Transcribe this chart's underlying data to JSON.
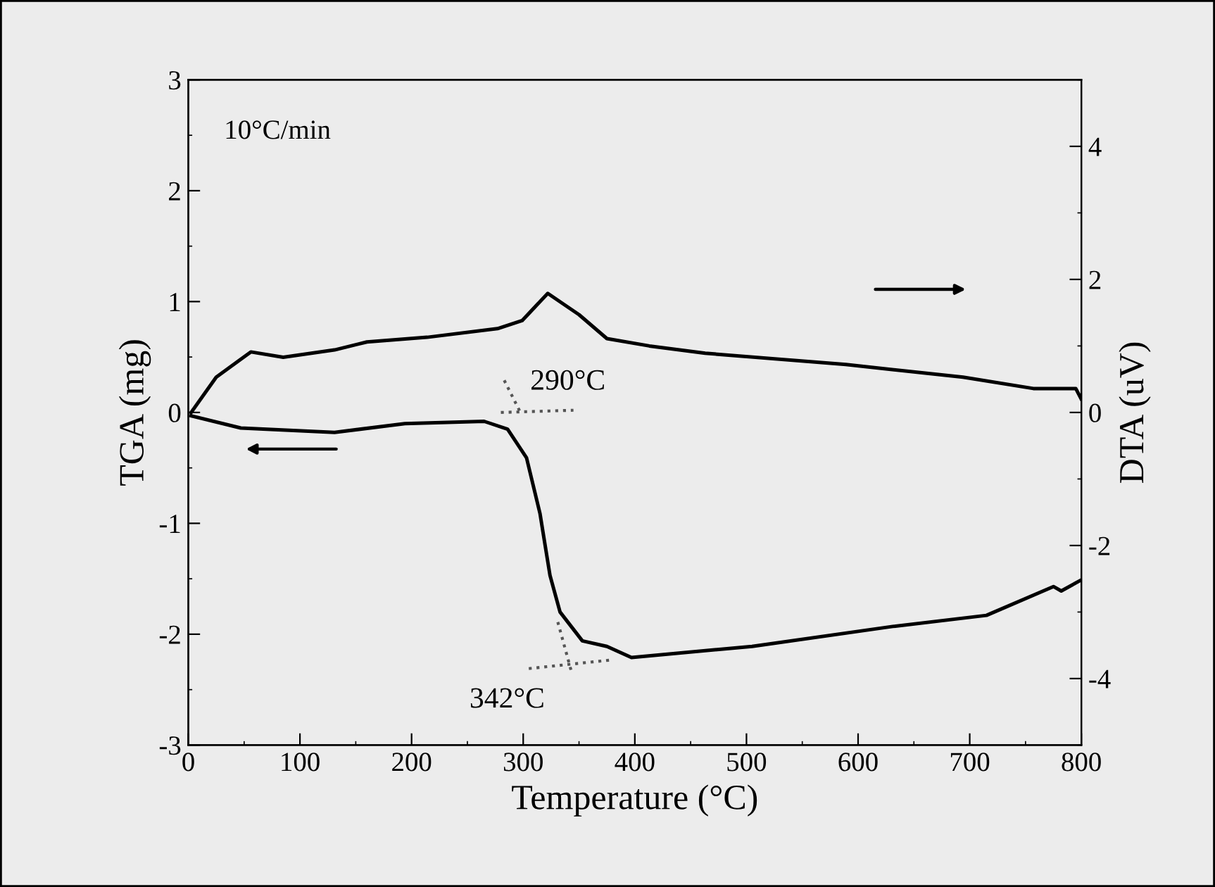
{
  "chart_data": {
    "type": "line",
    "xlabel": "Temperature (°C)",
    "ylabel": "TGA (mg)",
    "y2label": "DTA (uV)",
    "xlim": [
      0,
      800
    ],
    "xticks": [
      0,
      100,
      200,
      300,
      400,
      500,
      600,
      700,
      800
    ],
    "ylim": [
      -3,
      3
    ],
    "yticks": [
      -3,
      -2,
      -1,
      0,
      1,
      2,
      3
    ],
    "y2lim": [
      -5,
      5
    ],
    "y2ticks": [
      -4,
      -2,
      0,
      2,
      4
    ],
    "grid": false,
    "marker": "none",
    "series": [
      {
        "color": "#000000",
        "line_style": "solid",
        "x": [
          2.5,
          47,
          131,
          194,
          265,
          286,
          303,
          315,
          324,
          333,
          353,
          375,
          397,
          505,
          631,
          715,
          775,
          782,
          800
        ],
        "values": [
          -0.03,
          -0.14,
          -0.18,
          -0.1,
          -0.08,
          -0.15,
          -0.41,
          -0.91,
          -1.47,
          -1.8,
          -2.06,
          -2.11,
          -2.21,
          -2.11,
          -1.93,
          -1.83,
          -1.57,
          -1.61,
          -1.51
        ]
      },
      {
        "color": "#000000",
        "line_style": "solid",
        "axis": "y2",
        "x": [
          2.5,
          25,
          56,
          85,
          131,
          160,
          214,
          277,
          299,
          322,
          350,
          375,
          413,
          463,
          589,
          694,
          757,
          795,
          800
        ],
        "values": [
          0,
          0.53,
          0.91,
          0.83,
          0.94,
          1.06,
          1.13,
          1.26,
          1.38,
          1.79,
          1.47,
          1.11,
          1.0,
          0.89,
          0.72,
          0.53,
          0.36,
          0.36,
          0.2
        ]
      },
      {
        "color": "#555555",
        "line_style": "dotted",
        "x": [
          280,
          345
        ],
        "values": [
          0.0,
          0.02
        ]
      },
      {
        "color": "#555555",
        "line_style": "dotted",
        "x": [
          283,
          297
        ],
        "values": [
          0.29,
          0.01
        ]
      },
      {
        "color": "#555555",
        "line_style": "dotted",
        "x": [
          305,
          381
        ],
        "values": [
          -2.31,
          -2.23
        ]
      },
      {
        "color": "#555555",
        "line_style": "dotted",
        "x": [
          331,
          343
        ],
        "values": [
          -1.89,
          -2.33
        ]
      }
    ],
    "annotations": [
      "10°C/min",
      "290°C",
      "342°C"
    ]
  }
}
